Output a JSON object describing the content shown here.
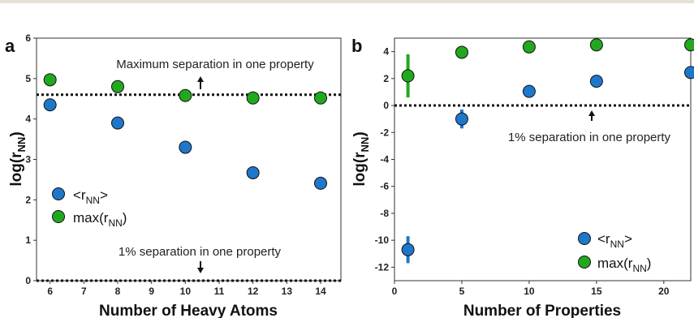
{
  "colors": {
    "blue": "#1f77c9",
    "green": "#22a81e",
    "topbar": "#e6e1d3"
  },
  "chart_data": [
    {
      "panel": "a",
      "type": "scatter",
      "xlabel": "Number of Heavy Atoms",
      "ylabel_main": "log(r",
      "ylabel_sub": "NN",
      "ylabel_close": ")",
      "xlim": [
        5.6,
        14.6
      ],
      "ylim": [
        0,
        6
      ],
      "xticks": [
        6,
        7,
        8,
        9,
        10,
        11,
        12,
        13,
        14
      ],
      "yticks": [
        0,
        1,
        2,
        3,
        4,
        5,
        6
      ],
      "grid": false,
      "legend_position": "left",
      "series": [
        {
          "legend_main": "<r",
          "legend_sub": "NN",
          "legend_close": ">",
          "color": "#1f77c9",
          "x": [
            6,
            8,
            10,
            12,
            14
          ],
          "y": [
            4.35,
            3.9,
            3.3,
            2.67,
            2.41
          ]
        },
        {
          "legend_main": "max(r",
          "legend_sub": "NN",
          "legend_close": ")",
          "color": "#22a81e",
          "x": [
            6,
            8,
            10,
            12,
            14
          ],
          "y": [
            4.97,
            4.8,
            4.58,
            4.52,
            4.52
          ]
        }
      ],
      "reference_lines": [
        {
          "y": 4.6,
          "label": "Maximum separation in one property",
          "arrow": "up"
        },
        {
          "y": 0.0,
          "label": "1% separation in one property",
          "arrow": "down"
        }
      ]
    },
    {
      "panel": "b",
      "type": "scatter",
      "xlabel": "Number of Properties",
      "ylabel_main": "log(r",
      "ylabel_sub": "NN",
      "ylabel_close": ")",
      "xlim": [
        0,
        22
      ],
      "ylim": [
        -13,
        5
      ],
      "xticks": [
        0,
        5,
        10,
        15,
        20
      ],
      "yticks": [
        4,
        2,
        0,
        -2,
        -4,
        -6,
        -8,
        -10,
        -12
      ],
      "grid": false,
      "legend_position": "bottom-right",
      "series": [
        {
          "legend_main": "<r",
          "legend_sub": "NN",
          "legend_close": ">",
          "color": "#1f77c9",
          "x": [
            1,
            5,
            10,
            15,
            22
          ],
          "y": [
            -10.7,
            -1.0,
            1.05,
            1.8,
            2.45
          ],
          "err": [
            1.0,
            0.7,
            0,
            0,
            0
          ]
        },
        {
          "legend_main": "max(r",
          "legend_sub": "NN",
          "legend_close": ")",
          "color": "#22a81e",
          "x": [
            1,
            5,
            10,
            15,
            22
          ],
          "y": [
            2.2,
            3.95,
            4.35,
            4.5,
            4.5
          ],
          "err": [
            1.6,
            0,
            0,
            0,
            0
          ]
        }
      ],
      "reference_lines": [
        {
          "y": 0,
          "label": "1% separation in one property",
          "arrow": "up"
        }
      ]
    }
  ]
}
